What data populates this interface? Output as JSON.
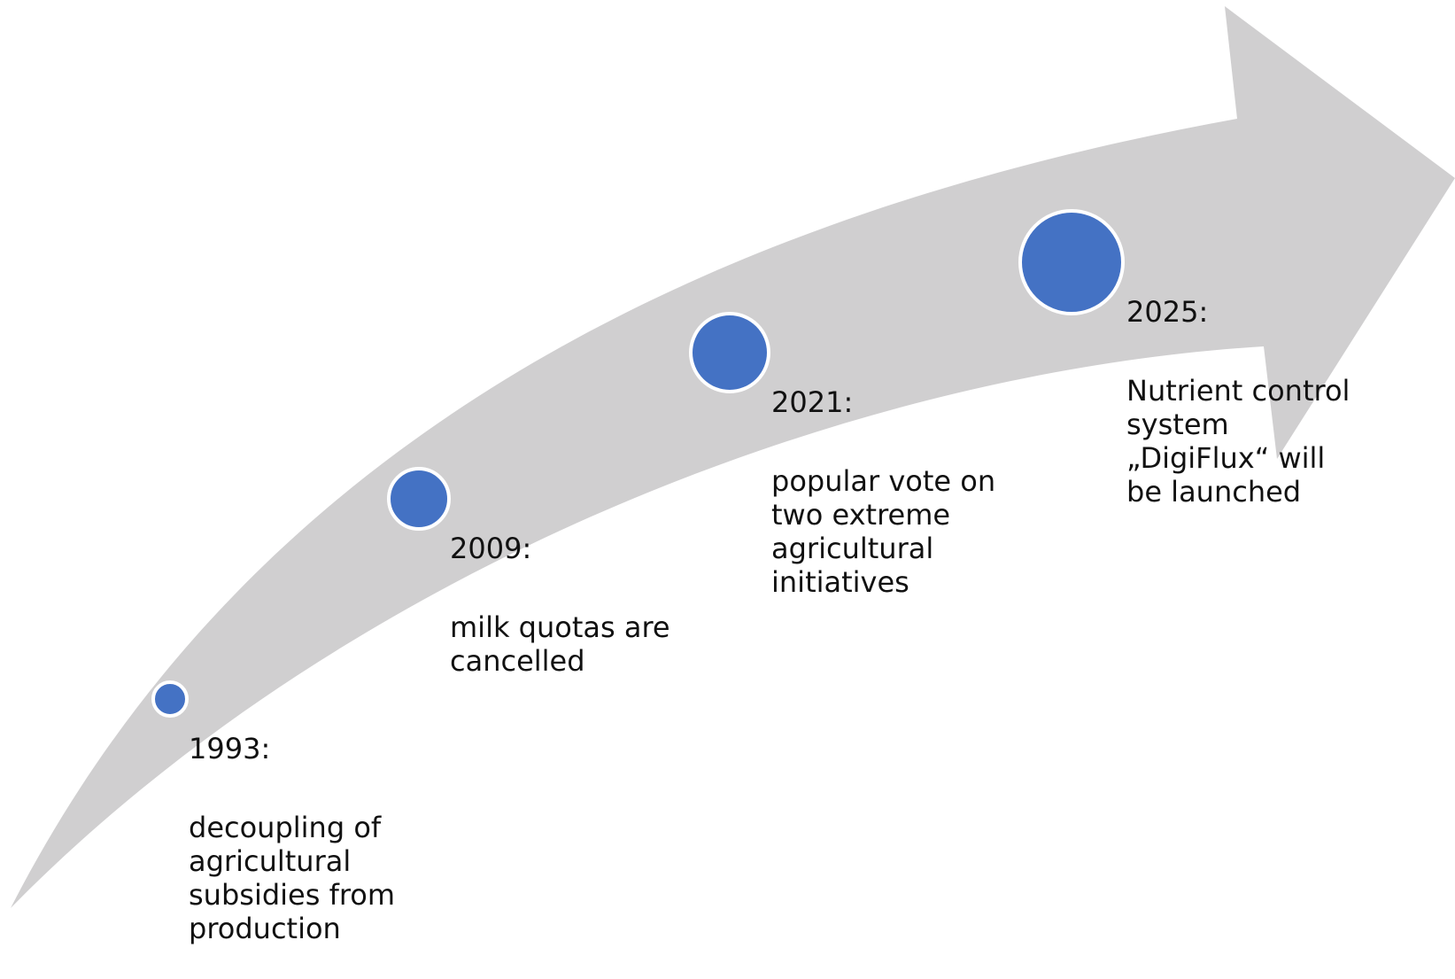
{
  "colors": {
    "arrow": "#d0cfd0",
    "dot": "#4472c4",
    "dot_border": "#ffffff",
    "text": "#111111"
  },
  "milestones": [
    {
      "year": "1993:",
      "description": "decoupling of\nagricultural\nsubsidies from\nproduction"
    },
    {
      "year": "2009:",
      "description": "milk quotas are\ncancelled"
    },
    {
      "year": "2021:",
      "description": "popular vote on\ntwo extreme\nagricultural\ninitiatives"
    },
    {
      "year": "2025:",
      "description": "Nutrient control\nsystem\n„DigiFlux“ will\nbe launched"
    }
  ]
}
